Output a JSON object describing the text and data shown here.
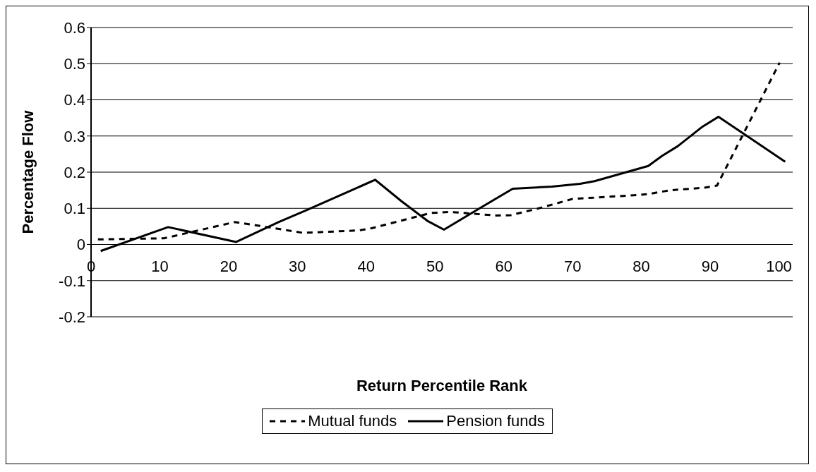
{
  "chart_data": {
    "type": "line",
    "xlabel": "Return Percentile Rank",
    "ylabel": "Percentage Flow",
    "xlim": [
      0,
      102
    ],
    "xticks": [
      0,
      10,
      20,
      30,
      40,
      50,
      60,
      70,
      80,
      90,
      100
    ],
    "ylim": [
      -0.2,
      0.6
    ],
    "yticks": [
      -0.2,
      -0.1,
      0,
      0.1,
      0.2,
      0.3,
      0.4,
      0.5,
      0.6
    ],
    "grid": "y",
    "legend": "bottom",
    "marker": "none",
    "series": [
      {
        "name": "Mutual funds",
        "color": "#000000",
        "line_style": "dashed",
        "x": [
          1,
          10.6,
          20.9,
          27,
          30.8,
          39,
          40.8,
          49.4,
          52.2,
          59,
          61,
          64.9,
          70,
          78.9,
          80.9,
          84.2,
          89.2,
          91,
          100.1
        ],
        "values": [
          0.014,
          0.017,
          0.062,
          0.044,
          0.032,
          0.039,
          0.045,
          0.087,
          0.09,
          0.08,
          0.081,
          0.099,
          0.126,
          0.136,
          0.139,
          0.15,
          0.157,
          0.163,
          0.503
        ]
      },
      {
        "name": "Pension funds",
        "color": "#000000",
        "line_style": "solid",
        "x": [
          1.4,
          11.2,
          21.1,
          27.3,
          31.2,
          37.3,
          41.3,
          45.1,
          49,
          51.3,
          57,
          61.3,
          67,
          71.1,
          73.2,
          81,
          83,
          85.3,
          88.9,
          91.2,
          94.9,
          100.9
        ],
        "values": [
          -0.018,
          0.048,
          0.007,
          0.062,
          0.094,
          0.145,
          0.179,
          0.12,
          0.064,
          0.041,
          0.106,
          0.154,
          0.16,
          0.168,
          0.175,
          0.217,
          0.245,
          0.272,
          0.326,
          0.353,
          0.306,
          0.229
        ]
      }
    ]
  }
}
